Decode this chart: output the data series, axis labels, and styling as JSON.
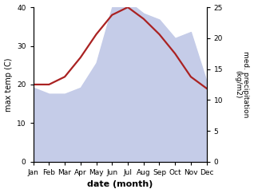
{
  "months": [
    "Jan",
    "Feb",
    "Mar",
    "Apr",
    "May",
    "Jun",
    "Jul",
    "Aug",
    "Sep",
    "Oct",
    "Nov",
    "Dec"
  ],
  "temp": [
    20,
    20,
    22,
    27,
    33,
    38,
    40,
    37,
    33,
    28,
    22,
    19
  ],
  "precip": [
    12,
    11,
    11,
    12,
    16,
    25,
    26,
    24,
    23,
    20,
    21,
    13
  ],
  "temp_color": "#aa2222",
  "precip_fill_color": "#c5cce8",
  "ylabel_left": "max temp (C)",
  "ylabel_right": "med. precipitation\n(kg/m2)",
  "xlabel": "date (month)",
  "ylim_left": [
    0,
    40
  ],
  "ylim_right": [
    0,
    25
  ],
  "background_color": "#ffffff"
}
